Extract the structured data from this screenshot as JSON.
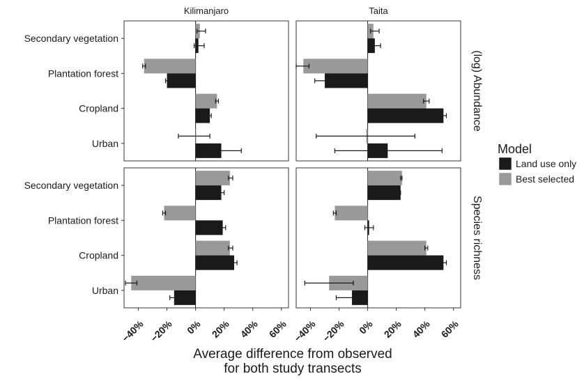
{
  "chart_data": {
    "type": "bar",
    "orientation": "horizontal",
    "columns": [
      "Kilimanjaro",
      "Taita"
    ],
    "rows": [
      "(log) Abundance",
      "Species richness"
    ],
    "categories": [
      "Secondary vegetation",
      "Plantation forest",
      "Cropland",
      "Urban"
    ],
    "xlabel_line1": "Average difference from observed",
    "xlabel_line2": "for both study transects",
    "xticks": [
      -40,
      -20,
      0,
      20,
      40,
      60
    ],
    "xtick_labels": [
      "−40%",
      "−20%",
      "0%",
      "20%",
      "40%",
      "60%"
    ],
    "xlim": [
      -50,
      65
    ],
    "legend": {
      "title": "Model",
      "position": "right",
      "entries": [
        {
          "label": "Land use only",
          "color": "#1a1a1a"
        },
        {
          "label": "Best selected",
          "color": "#999999"
        }
      ]
    },
    "series_colors": {
      "land_use_only": "#1a1a1a",
      "best_selected": "#999999"
    },
    "panels": [
      {
        "column": "Kilimanjaro",
        "row": "(log) Abundance",
        "best_selected": [
          {
            "value": 3,
            "err_low": 1,
            "err_high": 7
          },
          {
            "value": -36,
            "err_low": -37,
            "err_high": -35
          },
          {
            "value": 15,
            "err_low": 14,
            "err_high": 16
          },
          {
            "value": 0,
            "err_low": -12,
            "err_high": 10
          }
        ],
        "land_use_only": [
          {
            "value": 2,
            "err_low": -1,
            "err_high": 6
          },
          {
            "value": -20,
            "err_low": -21,
            "err_high": -19
          },
          {
            "value": 10,
            "err_low": 9,
            "err_high": 11
          },
          {
            "value": 18,
            "err_low": 4,
            "err_high": 32
          }
        ]
      },
      {
        "column": "Taita",
        "row": "(log) Abundance",
        "best_selected": [
          {
            "value": 4,
            "err_low": 2,
            "err_high": 8
          },
          {
            "value": -45,
            "err_low": -50,
            "err_high": -41
          },
          {
            "value": 41,
            "err_low": 39,
            "err_high": 43
          },
          {
            "value": -1,
            "err_low": -36,
            "err_high": 33
          }
        ],
        "land_use_only": [
          {
            "value": 5,
            "err_low": 3,
            "err_high": 9
          },
          {
            "value": -30,
            "err_low": -37,
            "err_high": -24
          },
          {
            "value": 53,
            "err_low": 51,
            "err_high": 55
          },
          {
            "value": 14,
            "err_low": -23,
            "err_high": 52
          }
        ]
      },
      {
        "column": "Kilimanjaro",
        "row": "Species richness",
        "best_selected": [
          {
            "value": 24,
            "err_low": 23,
            "err_high": 26
          },
          {
            "value": -22,
            "err_low": -23,
            "err_high": -21
          },
          {
            "value": 24,
            "err_low": 23,
            "err_high": 26
          },
          {
            "value": -45,
            "err_low": -49,
            "err_high": -41
          }
        ],
        "land_use_only": [
          {
            "value": 18,
            "err_low": 17,
            "err_high": 20
          },
          {
            "value": 19,
            "err_low": 18,
            "err_high": 21
          },
          {
            "value": 27,
            "err_low": 25,
            "err_high": 29
          },
          {
            "value": -15,
            "err_low": -18,
            "err_high": -12
          }
        ]
      },
      {
        "column": "Taita",
        "row": "Species richness",
        "best_selected": [
          {
            "value": 24,
            "err_low": 23,
            "err_high": 24
          },
          {
            "value": -23,
            "err_low": -24,
            "err_high": -22
          },
          {
            "value": 41,
            "err_low": 40,
            "err_high": 42
          },
          {
            "value": -27,
            "err_low": -44,
            "err_high": -10
          }
        ],
        "land_use_only": [
          {
            "value": 23,
            "err_low": 22,
            "err_high": 23
          },
          {
            "value": 1,
            "err_low": -2,
            "err_high": 4
          },
          {
            "value": 53,
            "err_low": 51,
            "err_high": 55
          },
          {
            "value": -11,
            "err_low": -22,
            "err_high": -1
          }
        ]
      }
    ]
  }
}
